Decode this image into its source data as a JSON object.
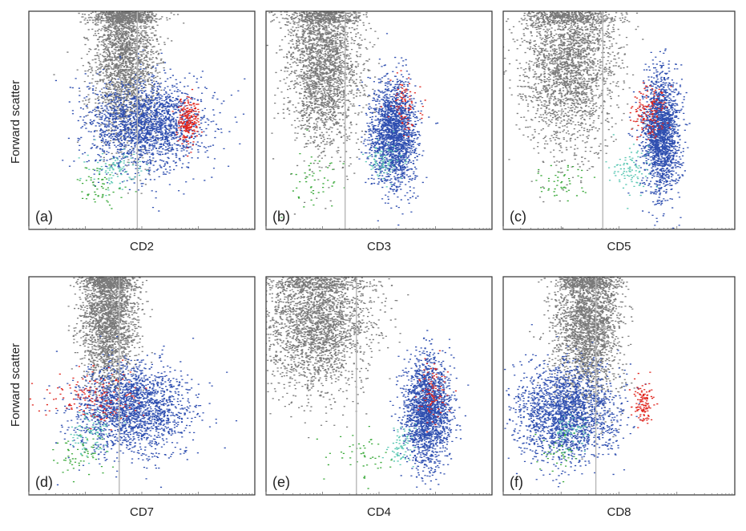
{
  "figure": {
    "y_axis_label": "Forward scatter"
  },
  "chart_data": [
    {
      "type": "scatter",
      "panel": "(a)",
      "xlabel": "CD2",
      "ylabel": "Forward scatter",
      "x_scale": "log",
      "y_scale": "linear",
      "threshold_line": true,
      "series_colors": {
        "gray": "#7a7a7a",
        "blue": "#2f4fb0",
        "red": "#e0261f",
        "green": "#3caa3c",
        "cyan": "#5cc8b4"
      },
      "populations": [
        {
          "color": "gray",
          "center": [
            0.42,
            0.82
          ],
          "spread": [
            0.07,
            0.2
          ],
          "count": 2600
        },
        {
          "color": "blue",
          "center": [
            0.52,
            0.48
          ],
          "spread": [
            0.13,
            0.1
          ],
          "count": 2000
        },
        {
          "color": "red",
          "center": [
            0.7,
            0.5
          ],
          "spread": [
            0.025,
            0.05
          ],
          "count": 220
        },
        {
          "color": "cyan",
          "center": [
            0.38,
            0.28
          ],
          "spread": [
            0.06,
            0.05
          ],
          "count": 90
        },
        {
          "color": "green",
          "center": [
            0.3,
            0.2
          ],
          "spread": [
            0.06,
            0.05
          ],
          "count": 60
        }
      ]
    },
    {
      "type": "scatter",
      "panel": "(b)",
      "xlabel": "CD3",
      "ylabel": "Forward scatter",
      "x_scale": "log",
      "y_scale": "linear",
      "threshold_line": true,
      "series_colors": {
        "gray": "#7a7a7a",
        "blue": "#2f4fb0",
        "red": "#e0261f",
        "green": "#3caa3c",
        "cyan": "#5cc8b4"
      },
      "populations": [
        {
          "color": "gray",
          "center": [
            0.25,
            0.78
          ],
          "spread": [
            0.08,
            0.2
          ],
          "count": 2600
        },
        {
          "color": "blue",
          "center": [
            0.56,
            0.44
          ],
          "spread": [
            0.05,
            0.12
          ],
          "count": 1900
        },
        {
          "color": "red",
          "center": [
            0.62,
            0.58
          ],
          "spread": [
            0.03,
            0.07
          ],
          "count": 80
        },
        {
          "color": "cyan",
          "center": [
            0.52,
            0.32
          ],
          "spread": [
            0.04,
            0.05
          ],
          "count": 80
        },
        {
          "color": "green",
          "center": [
            0.2,
            0.22
          ],
          "spread": [
            0.07,
            0.06
          ],
          "count": 50
        }
      ]
    },
    {
      "type": "scatter",
      "panel": "(c)",
      "xlabel": "CD5",
      "ylabel": "Forward scatter",
      "x_scale": "log",
      "y_scale": "linear",
      "threshold_line": true,
      "series_colors": {
        "gray": "#7a7a7a",
        "blue": "#2f4fb0",
        "red": "#e0261f",
        "green": "#3caa3c",
        "cyan": "#5cc8b4"
      },
      "populations": [
        {
          "color": "gray",
          "center": [
            0.28,
            0.78
          ],
          "spread": [
            0.1,
            0.2
          ],
          "count": 2600
        },
        {
          "color": "blue",
          "center": [
            0.68,
            0.44
          ],
          "spread": [
            0.04,
            0.13
          ],
          "count": 1900
        },
        {
          "color": "red",
          "center": [
            0.63,
            0.54
          ],
          "spread": [
            0.04,
            0.06
          ],
          "count": 150
        },
        {
          "color": "cyan",
          "center": [
            0.55,
            0.28
          ],
          "spread": [
            0.04,
            0.06
          ],
          "count": 90
        },
        {
          "color": "green",
          "center": [
            0.25,
            0.22
          ],
          "spread": [
            0.07,
            0.05
          ],
          "count": 50
        }
      ]
    },
    {
      "type": "scatter",
      "panel": "(d)",
      "xlabel": "CD7",
      "ylabel": "Forward scatter",
      "x_scale": "log",
      "y_scale": "linear",
      "threshold_line": true,
      "series_colors": {
        "gray": "#7a7a7a",
        "blue": "#2f4fb0",
        "red": "#e0261f",
        "green": "#3caa3c",
        "cyan": "#5cc8b4"
      },
      "populations": [
        {
          "color": "gray",
          "center": [
            0.35,
            0.82
          ],
          "spread": [
            0.06,
            0.16
          ],
          "count": 2400
        },
        {
          "color": "blue",
          "center": [
            0.45,
            0.4
          ],
          "spread": [
            0.13,
            0.1
          ],
          "count": 2000
        },
        {
          "color": "red",
          "center": [
            0.28,
            0.45
          ],
          "spread": [
            0.1,
            0.06
          ],
          "count": 160
        },
        {
          "color": "cyan",
          "center": [
            0.28,
            0.28
          ],
          "spread": [
            0.05,
            0.05
          ],
          "count": 80
        },
        {
          "color": "green",
          "center": [
            0.22,
            0.18
          ],
          "spread": [
            0.06,
            0.05
          ],
          "count": 60
        }
      ]
    },
    {
      "type": "scatter",
      "panel": "(e)",
      "xlabel": "CD4",
      "ylabel": "Forward scatter",
      "x_scale": "log",
      "y_scale": "linear",
      "threshold_line": true,
      "series_colors": {
        "gray": "#7a7a7a",
        "blue": "#2f4fb0",
        "red": "#e0261f",
        "green": "#3caa3c",
        "cyan": "#5cc8b4"
      },
      "populations": [
        {
          "color": "gray",
          "center": [
            0.22,
            0.8
          ],
          "spread": [
            0.12,
            0.16
          ],
          "count": 2600
        },
        {
          "color": "blue",
          "center": [
            0.71,
            0.38
          ],
          "spread": [
            0.05,
            0.12
          ],
          "count": 1900
        },
        {
          "color": "red",
          "center": [
            0.74,
            0.48
          ],
          "spread": [
            0.03,
            0.07
          ],
          "count": 90
        },
        {
          "color": "cyan",
          "center": [
            0.59,
            0.22
          ],
          "spread": [
            0.03,
            0.05
          ],
          "count": 70
        },
        {
          "color": "green",
          "center": [
            0.4,
            0.18
          ],
          "spread": [
            0.08,
            0.06
          ],
          "count": 50
        }
      ]
    },
    {
      "type": "scatter",
      "panel": "(f)",
      "xlabel": "CD8",
      "ylabel": "Forward scatter",
      "x_scale": "log",
      "y_scale": "linear",
      "threshold_line": true,
      "series_colors": {
        "gray": "#7a7a7a",
        "blue": "#2f4fb0",
        "red": "#e0261f",
        "green": "#3caa3c",
        "cyan": "#5cc8b4"
      },
      "populations": [
        {
          "color": "gray",
          "center": [
            0.36,
            0.8
          ],
          "spread": [
            0.07,
            0.18
          ],
          "count": 2600
        },
        {
          "color": "blue",
          "center": [
            0.27,
            0.38
          ],
          "spread": [
            0.11,
            0.11
          ],
          "count": 2000
        },
        {
          "color": "red",
          "center": [
            0.6,
            0.42
          ],
          "spread": [
            0.02,
            0.05
          ],
          "count": 120
        },
        {
          "color": "cyan",
          "center": [
            0.3,
            0.28
          ],
          "spread": [
            0.04,
            0.05
          ],
          "count": 60
        },
        {
          "color": "green",
          "center": [
            0.24,
            0.2
          ],
          "spread": [
            0.05,
            0.05
          ],
          "count": 40
        }
      ]
    }
  ]
}
